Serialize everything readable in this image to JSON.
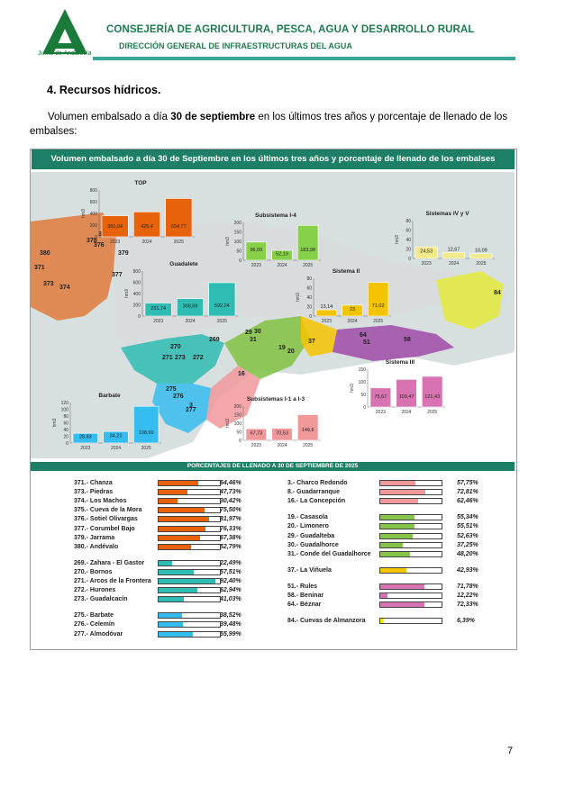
{
  "header": {
    "org": "Junta de Andalucía",
    "title": "CONSEJERÍA DE AGRICULTURA, PESCA, AGUA Y DESARROLLO RURAL",
    "subtitle": "DIRECCIÓN GENERAL DE INFRAESTRUCTURAS DEL AGUA",
    "accent_color": "#1f7a4f",
    "rule_color": "#3aa39a"
  },
  "section": {
    "title": "4.  Recursos hídricos.",
    "intro_a": "Volumen embalsado a día ",
    "intro_bold": "30 de septiembre",
    "intro_b": " en los últimos tres años y porcentaje de llenado de los embalses:"
  },
  "panel": {
    "title": "Volumen embalsado a día 30 de Septiembre en los últimos tres años y porcentaje de llenado de los embalses",
    "header_color": "#1e7f67"
  },
  "map_labels": [
    {
      "label": "375"
    },
    {
      "label": "376"
    },
    {
      "label": "378"
    },
    {
      "label": "379"
    },
    {
      "label": "380"
    },
    {
      "label": "371"
    },
    {
      "label": "373"
    },
    {
      "label": "374"
    },
    {
      "label": "377"
    },
    {
      "label": "270"
    },
    {
      "label": "269"
    },
    {
      "label": "271"
    },
    {
      "label": "273"
    },
    {
      "label": "272"
    },
    {
      "label": "275"
    },
    {
      "label": "276"
    },
    {
      "label": "277"
    },
    {
      "label": "29"
    },
    {
      "label": "30"
    },
    {
      "label": "31"
    },
    {
      "label": "19"
    },
    {
      "label": "20"
    },
    {
      "label": "37"
    },
    {
      "label": "16"
    },
    {
      "label": "64"
    },
    {
      "label": "51"
    },
    {
      "label": "58"
    },
    {
      "label": "84"
    },
    {
      "label": "3"
    }
  ],
  "chart_data": [
    {
      "type": "bar",
      "title": "TOP",
      "ylabel": "hm3",
      "categories": [
        "2023",
        "2024",
        "2025"
      ],
      "values": [
        360.04,
        425.4,
        654.77
      ],
      "value_labels": [
        "360,04",
        "425,4",
        "654,77"
      ],
      "ylim": [
        0,
        800
      ],
      "yticks": [
        "0",
        "200",
        "400",
        "600",
        "800"
      ],
      "color": "#e8620c"
    },
    {
      "type": "bar",
      "title": "Guadalete",
      "ylabel": "hm3",
      "categories": [
        "2023",
        "2024",
        "2025"
      ],
      "values": [
        231.74,
        308.89,
        592.24
      ],
      "value_labels": [
        "231,74",
        "308,89",
        "592,24"
      ],
      "ylim": [
        0,
        800
      ],
      "yticks": [
        "0",
        "200",
        "400",
        "600",
        "800"
      ],
      "color": "#2fbcb2"
    },
    {
      "type": "bar",
      "title": "Barbate",
      "ylabel": "hm3",
      "categories": [
        "2023",
        "2024",
        "2025"
      ],
      "values": [
        28.83,
        34.23,
        108.69
      ],
      "value_labels": [
        "28,83",
        "34,23",
        "108,69"
      ],
      "ylim": [
        0,
        120
      ],
      "yticks": [
        "0",
        "20",
        "40",
        "60",
        "80",
        "100",
        "120"
      ],
      "color": "#36bdf0"
    },
    {
      "type": "bar",
      "title": "Subsistema I-4",
      "ylabel": "hm3",
      "categories": [
        "2023",
        "2024",
        "2025"
      ],
      "values": [
        96.09,
        52.19,
        183.98
      ],
      "value_labels": [
        "96,09",
        "52,19",
        "183,98"
      ],
      "ylim": [
        0,
        200
      ],
      "yticks": [
        "0",
        "50",
        "100",
        "150",
        "200"
      ],
      "color": "#86d04a"
    },
    {
      "type": "bar",
      "title": "Sistemas IV y V",
      "ylabel": "hm3",
      "categories": [
        "2023",
        "2024",
        "2025"
      ],
      "values": [
        24.53,
        12.67,
        10.09
      ],
      "value_labels": [
        "24,53",
        "12,67",
        "10,09"
      ],
      "ylim": [
        0,
        80
      ],
      "yticks": [
        "0",
        "20",
        "40",
        "60",
        "80"
      ],
      "color": "#f2e98a"
    },
    {
      "type": "bar",
      "title": "Sistema II",
      "ylabel": "hm3",
      "categories": [
        "2023",
        "2024",
        "2025"
      ],
      "values": [
        13.14,
        23,
        71.02
      ],
      "value_labels": [
        "13,14",
        "23",
        "71,02"
      ],
      "ylim": [
        0,
        80
      ],
      "yticks": [
        "0",
        "20",
        "40",
        "60",
        "80"
      ],
      "color": "#f5c400"
    },
    {
      "type": "bar",
      "title": "Sistema III",
      "ylabel": "hm3",
      "categories": [
        "2023",
        "2024",
        "2025"
      ],
      "values": [
        75.67,
        109.47,
        121.43
      ],
      "value_labels": [
        "75,67",
        "109,47",
        "121,43"
      ],
      "ylim": [
        0,
        150
      ],
      "yticks": [
        "0",
        "50",
        "100",
        "150"
      ],
      "color": "#d873b2"
    },
    {
      "type": "bar",
      "title": "Subsistemas I-1 a I-3",
      "ylabel": "hm3",
      "categories": [
        "2023",
        "2024",
        "2025"
      ],
      "values": [
        67.73,
        70.53,
        149.6
      ],
      "value_labels": [
        "67,73",
        "70,53",
        "149,6"
      ],
      "ylim": [
        0,
        200
      ],
      "yticks": [
        "0",
        "50",
        "100",
        "150",
        "200"
      ],
      "color": "#f1989b"
    }
  ],
  "percent_header": "PORCENTAJES DE LLENADO A 30 DE SEPTIEMBRE DE 2025",
  "percentages": {
    "left": [
      {
        "name": "371.- Chanza",
        "pct": "64,46%",
        "value": 64.46,
        "color": "#e8620c"
      },
      {
        "name": "373.- Piedras",
        "pct": "47,73%",
        "value": 47.73,
        "color": "#e8620c"
      },
      {
        "name": "374.- Los Machos",
        "pct": "30,42%",
        "value": 30.42,
        "color": "#e8620c"
      },
      {
        "name": "375.- Cueva de la Mora",
        "pct": "75,50%",
        "value": 75.5,
        "color": "#e8620c"
      },
      {
        "name": "376.- Sotiel Olivargas",
        "pct": "81,97%",
        "value": 81.97,
        "color": "#e8620c"
      },
      {
        "name": "377.- Corumbel Bajo",
        "pct": "76,33%",
        "value": 76.33,
        "color": "#e8620c"
      },
      {
        "name": "379.- Jarrama",
        "pct": "67,38%",
        "value": 67.38,
        "color": "#e8620c"
      },
      {
        "name": "380.- Andévalo",
        "pct": "52,79%",
        "value": 52.79,
        "color": "#e8620c"
      },
      {
        "name": "269.- Zahara - El Gastor",
        "pct": "22,49%",
        "value": 22.49,
        "color": "#2fbcb2"
      },
      {
        "name": "270.- Bornos",
        "pct": "57,51%",
        "value": 57.51,
        "color": "#2fbcb2"
      },
      {
        "name": "271.- Arcos de la Frontera",
        "pct": "92,40%",
        "value": 92.4,
        "color": "#2fbcb2"
      },
      {
        "name": "272.- Hurones",
        "pct": "62,94%",
        "value": 62.94,
        "color": "#2fbcb2"
      },
      {
        "name": "273.- Guadalcacín",
        "pct": "41,03%",
        "value": 41.03,
        "color": "#2fbcb2"
      },
      {
        "name": "275.- Barbate",
        "pct": "38,52%",
        "value": 38.52,
        "color": "#36bdf0"
      },
      {
        "name": "276.- Celemín",
        "pct": "39,48%",
        "value": 39.48,
        "color": "#36bdf0"
      },
      {
        "name": "277.- Almodóvar",
        "pct": "55,99%",
        "value": 55.99,
        "color": "#36bdf0"
      }
    ],
    "right": [
      {
        "name": "3.- Charco Redondo",
        "pct": "57,75%",
        "value": 57.75,
        "color": "#f1989b"
      },
      {
        "name": "8.- Guadarranque",
        "pct": "72,81%",
        "value": 72.81,
        "color": "#f1989b"
      },
      {
        "name": "16.- La Concepción",
        "pct": "62,46%",
        "value": 62.46,
        "color": "#f1989b"
      },
      {
        "name": "19.- Casasola",
        "pct": "55,34%",
        "value": 55.34,
        "color": "#86c34a"
      },
      {
        "name": "20.- Limonero",
        "pct": "55,51%",
        "value": 55.51,
        "color": "#86c34a"
      },
      {
        "name": "29.- Guadalteba",
        "pct": "52,63%",
        "value": 52.63,
        "color": "#86c34a"
      },
      {
        "name": "30.- Guadalhorce",
        "pct": "37,25%",
        "value": 37.25,
        "color": "#86c34a"
      },
      {
        "name": "31.- Conde del Guadalhorce",
        "pct": "48,20%",
        "value": 48.2,
        "color": "#86c34a"
      },
      {
        "name": "37.- La Viñuela",
        "pct": "42,93%",
        "value": 42.93,
        "color": "#f5c400"
      },
      {
        "name": "51.- Rules",
        "pct": "71,78%",
        "value": 71.78,
        "color": "#d873b2"
      },
      {
        "name": "58.- Beninar",
        "pct": "12,22%",
        "value": 12.22,
        "color": "#d873b2"
      },
      {
        "name": "64.- Béznar",
        "pct": "72,33%",
        "value": 72.33,
        "color": "#d873b2"
      },
      {
        "name": "84.- Cuevas de Almanzora",
        "pct": "6,39%",
        "value": 6.39,
        "color": "#f5f000"
      }
    ]
  },
  "page_number": "7"
}
